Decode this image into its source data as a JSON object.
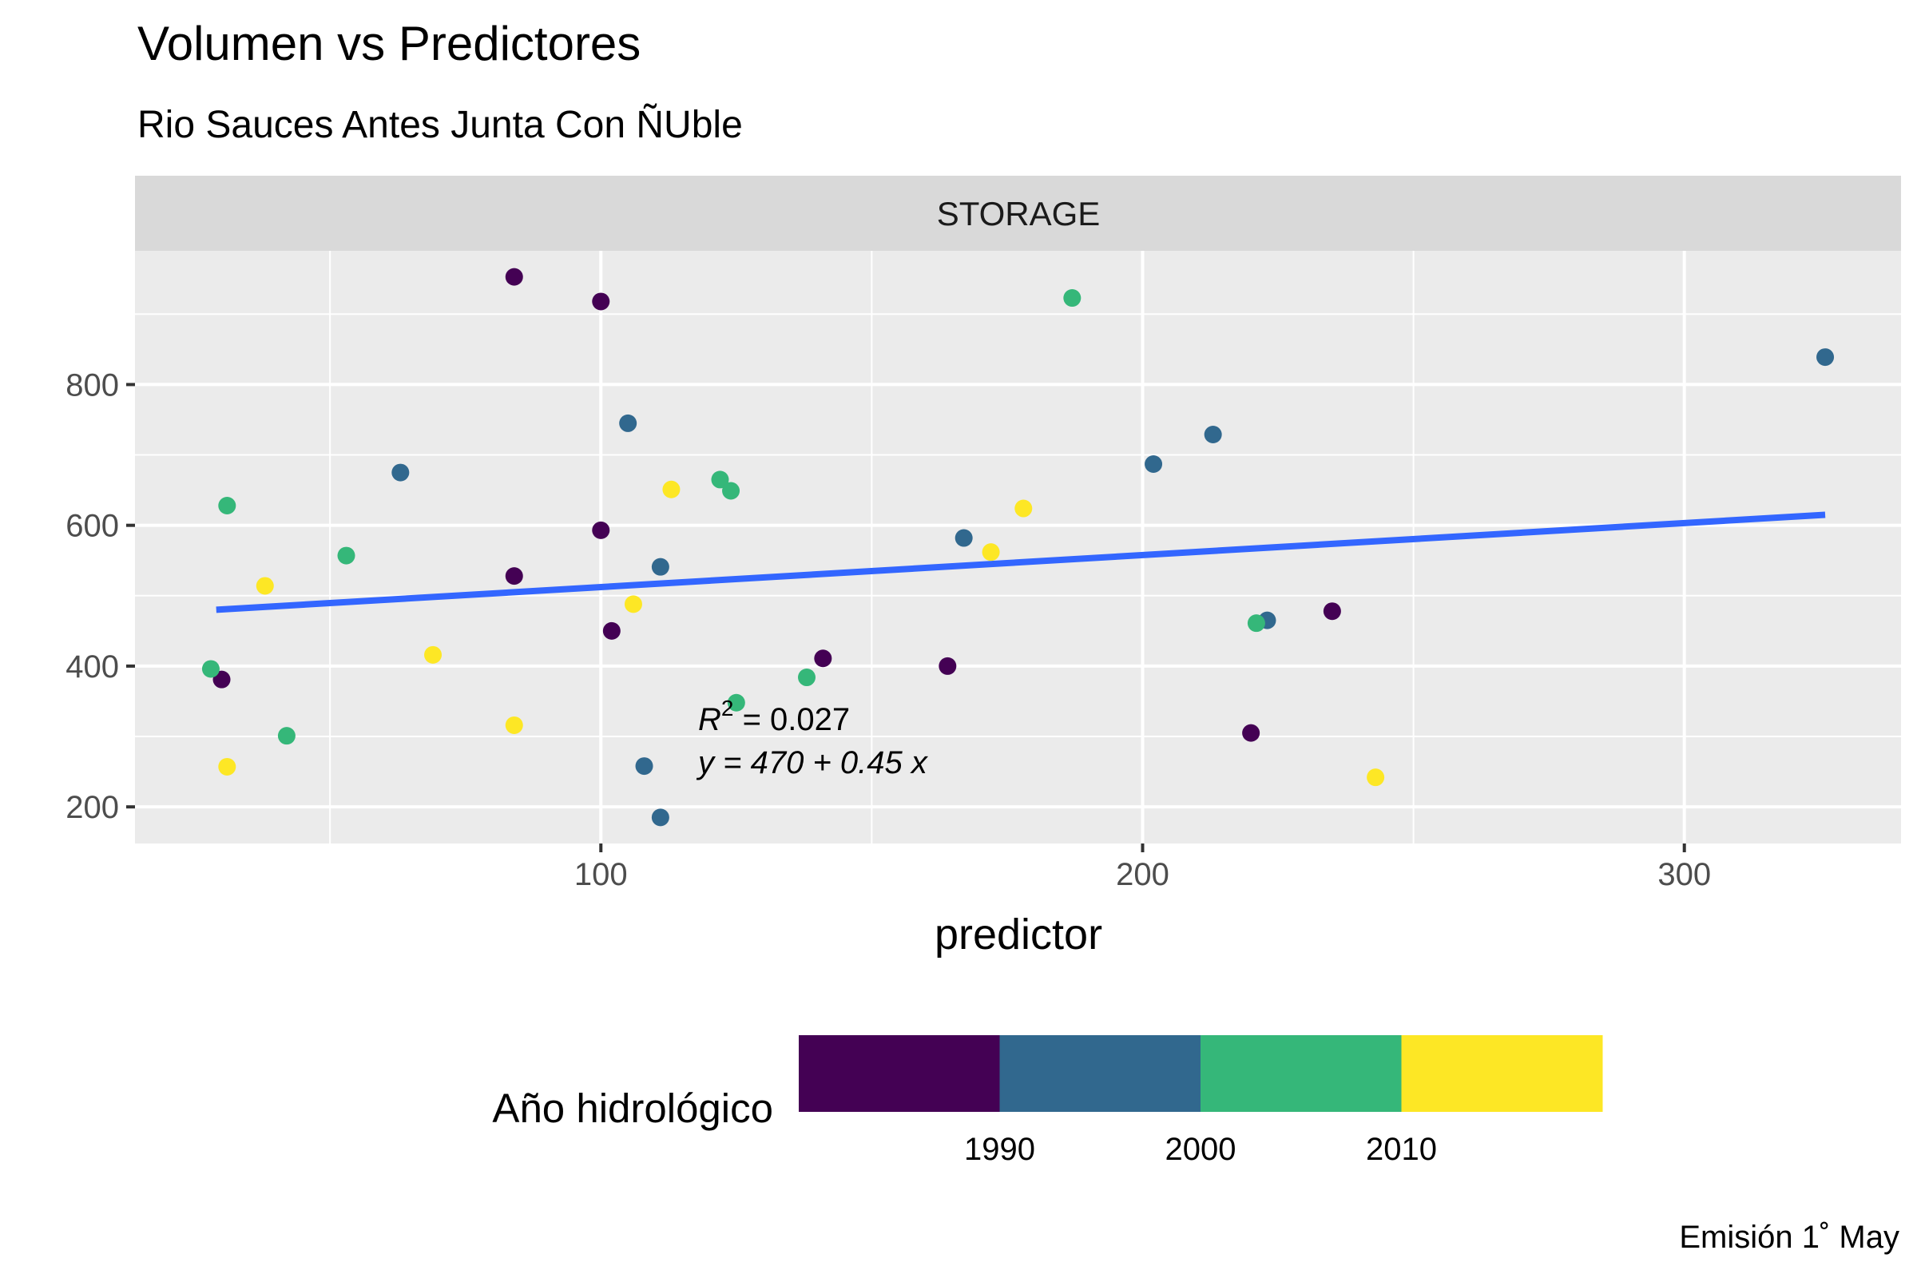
{
  "chart_data": {
    "type": "scatter",
    "title": "Volumen vs Predictores",
    "subtitle": "Rio Sauces Antes Junta Con ÑUble",
    "facet_label": "STORAGE",
    "xlabel": "predictor",
    "ylabel": "",
    "caption": "Emisión 1˚ May",
    "xlim": [
      14,
      340
    ],
    "ylim": [
      148,
      990
    ],
    "x_ticks": [
      100,
      200,
      300
    ],
    "y_ticks": [
      200,
      400,
      600,
      800
    ],
    "x_tick_labels": [
      "100",
      "200",
      "300"
    ],
    "y_tick_labels": [
      "200",
      "400",
      "600",
      "800"
    ],
    "grid": true,
    "legend": {
      "title": "Año hidrológico",
      "position": "bottom",
      "bins": [
        {
          "color": "#440154"
        },
        {
          "color": "#31688E"
        },
        {
          "color": "#35B779"
        },
        {
          "color": "#FDE725"
        }
      ],
      "labels": [
        "1990",
        "2000",
        "2010"
      ]
    },
    "fit_line": {
      "color": "#3366FF",
      "x": [
        29,
        326
      ],
      "y": [
        480,
        615
      ]
    },
    "annotation": {
      "r2_label": "R",
      "r2_sup": "2",
      "r2_value": " = 0.027",
      "equation": "y = 470 + 0.45 x"
    },
    "points": [
      {
        "x": 84,
        "y": 953,
        "color": "#440154"
      },
      {
        "x": 100,
        "y": 918,
        "color": "#440154"
      },
      {
        "x": 100,
        "y": 593,
        "color": "#440154"
      },
      {
        "x": 84,
        "y": 528,
        "color": "#440154"
      },
      {
        "x": 102,
        "y": 450,
        "color": "#440154"
      },
      {
        "x": 30,
        "y": 381,
        "color": "#440154"
      },
      {
        "x": 141,
        "y": 411,
        "color": "#440154"
      },
      {
        "x": 164,
        "y": 400,
        "color": "#440154"
      },
      {
        "x": 235,
        "y": 478,
        "color": "#440154"
      },
      {
        "x": 220,
        "y": 305,
        "color": "#440154"
      },
      {
        "x": 326,
        "y": 839,
        "color": "#31688E"
      },
      {
        "x": 105,
        "y": 745,
        "color": "#31688E"
      },
      {
        "x": 213,
        "y": 729,
        "color": "#31688E"
      },
      {
        "x": 202,
        "y": 687,
        "color": "#31688E"
      },
      {
        "x": 63,
        "y": 675,
        "color": "#31688E"
      },
      {
        "x": 167,
        "y": 582,
        "color": "#31688E"
      },
      {
        "x": 111,
        "y": 541,
        "color": "#31688E"
      },
      {
        "x": 223,
        "y": 465,
        "color": "#31688E"
      },
      {
        "x": 108,
        "y": 258,
        "color": "#31688E"
      },
      {
        "x": 111,
        "y": 185,
        "color": "#31688E"
      },
      {
        "x": 187,
        "y": 923,
        "color": "#35B779"
      },
      {
        "x": 122,
        "y": 665,
        "color": "#35B779"
      },
      {
        "x": 124,
        "y": 649,
        "color": "#35B779"
      },
      {
        "x": 31,
        "y": 628,
        "color": "#35B779"
      },
      {
        "x": 53,
        "y": 557,
        "color": "#35B779"
      },
      {
        "x": 221,
        "y": 461,
        "color": "#35B779"
      },
      {
        "x": 28,
        "y": 396,
        "color": "#35B779"
      },
      {
        "x": 138,
        "y": 384,
        "color": "#35B779"
      },
      {
        "x": 125,
        "y": 348,
        "color": "#35B779"
      },
      {
        "x": 42,
        "y": 301,
        "color": "#35B779"
      },
      {
        "x": 113,
        "y": 651,
        "color": "#FDE725"
      },
      {
        "x": 178,
        "y": 624,
        "color": "#FDE725"
      },
      {
        "x": 172,
        "y": 562,
        "color": "#FDE725"
      },
      {
        "x": 38,
        "y": 514,
        "color": "#FDE725"
      },
      {
        "x": 106,
        "y": 488,
        "color": "#FDE725"
      },
      {
        "x": 69,
        "y": 416,
        "color": "#FDE725"
      },
      {
        "x": 84,
        "y": 316,
        "color": "#FDE725"
      },
      {
        "x": 31,
        "y": 257,
        "color": "#FDE725"
      },
      {
        "x": 243,
        "y": 242,
        "color": "#FDE725"
      }
    ]
  }
}
